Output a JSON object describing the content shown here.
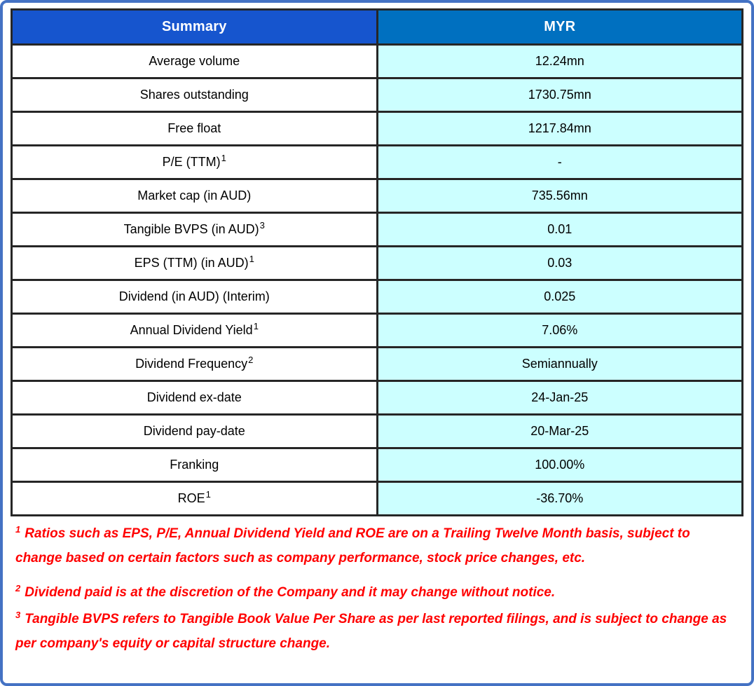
{
  "table": {
    "headers": {
      "summary": "Summary",
      "currency": "MYR"
    },
    "rows": [
      {
        "label": "Average volume",
        "sup": "",
        "value": "12.24mn"
      },
      {
        "label": "Shares outstanding",
        "sup": "",
        "value": "1730.75mn"
      },
      {
        "label": "Free float",
        "sup": "",
        "value": "1217.84mn"
      },
      {
        "label": "P/E (TTM)",
        "sup": "1",
        "value": "-"
      },
      {
        "label": "Market cap (in AUD)",
        "sup": "",
        "value": "735.56mn"
      },
      {
        "label": "Tangible BVPS (in AUD)",
        "sup": "3",
        "value": "0.01"
      },
      {
        "label": "EPS (TTM) (in AUD)",
        "sup": "1",
        "value": "0.03"
      },
      {
        "label": "Dividend (in AUD) (Interim)",
        "sup": "",
        "value": "0.025"
      },
      {
        "label": "Annual Dividend Yield",
        "sup": "1",
        "value": "7.06%"
      },
      {
        "label": "Dividend Frequency",
        "sup": "2",
        "value": "Semiannually"
      },
      {
        "label": "Dividend ex-date",
        "sup": "",
        "value": "24-Jan-25"
      },
      {
        "label": "Dividend pay-date",
        "sup": "",
        "value": "20-Mar-25"
      },
      {
        "label": "Franking",
        "sup": "",
        "value": "100.00%"
      },
      {
        "label": "ROE",
        "sup": "1",
        "value": "-36.70%"
      }
    ]
  },
  "footnotes": [
    {
      "sup": "1",
      "text": "Ratios such as EPS, P/E, Annual Dividend Yield and ROE are on a Trailing Twelve Month basis, subject to change based on certain factors such as company performance, stock price changes, etc."
    },
    {
      "sup": "2",
      "text": "Dividend paid is at the discretion of the Company and it may change without notice."
    },
    {
      "sup": "3",
      "text": "Tangible BVPS refers to Tangible Book Value Per Share as per last reported filings, and is subject to change as per company's equity or capital structure change."
    }
  ],
  "colors": {
    "frame_blue": "#4472C4",
    "header_left_bg": "#1655CE",
    "header_right_bg": "#0070C0",
    "value_bg": "#CCFFFF",
    "border_dark": "#262626",
    "footnote_red": "#FF0000"
  }
}
